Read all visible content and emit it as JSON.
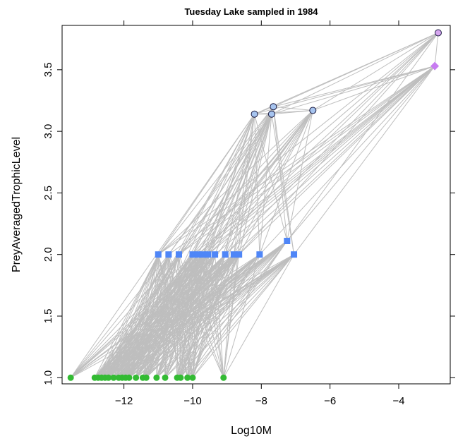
{
  "chart_data": {
    "type": "scatter",
    "title": "Tuesday Lake sampled in 1984",
    "xlabel": "Log10M",
    "ylabel": "PreyAveragedTrophicLevel",
    "xlim": [
      -13.8,
      -2.5
    ],
    "ylim": [
      0.95,
      3.86
    ],
    "xticks": [
      -12,
      -10,
      -8,
      -6,
      -4
    ],
    "yticks": [
      1.0,
      1.5,
      2.0,
      2.5,
      3.0,
      3.5
    ],
    "xtick_labels": [
      "−12",
      "−10",
      "−8",
      "−6",
      "−4"
    ],
    "ytick_labels": [
      "1.0",
      "1.5",
      "2.0",
      "2.5",
      "3.0",
      "3.5"
    ],
    "grid": false,
    "link_color": "#bebebe",
    "series": [
      {
        "marker": "circle",
        "color": "#33bb33",
        "points": [
          [
            -13.55,
            1
          ],
          [
            -12.85,
            1
          ],
          [
            -12.75,
            1
          ],
          [
            -12.65,
            1
          ],
          [
            -12.55,
            1
          ],
          [
            -12.45,
            1
          ],
          [
            -12.3,
            1
          ],
          [
            -12.15,
            1
          ],
          [
            -12.05,
            1
          ],
          [
            -11.95,
            1
          ],
          [
            -11.85,
            1
          ],
          [
            -11.65,
            1
          ],
          [
            -11.45,
            1
          ],
          [
            -11.35,
            1
          ],
          [
            -11.05,
            1
          ],
          [
            -10.8,
            1
          ],
          [
            -10.45,
            1
          ],
          [
            -10.35,
            1
          ],
          [
            -10.15,
            1
          ],
          [
            -10.0,
            1
          ],
          [
            -9.1,
            1
          ]
        ]
      },
      {
        "marker": "square",
        "color": "#4f86f7",
        "points": [
          [
            -11.0,
            2
          ],
          [
            -10.7,
            2
          ],
          [
            -10.4,
            2
          ],
          [
            -10.0,
            2
          ],
          [
            -9.85,
            2
          ],
          [
            -9.7,
            2
          ],
          [
            -9.55,
            2
          ],
          [
            -9.35,
            2
          ],
          [
            -9.05,
            2
          ],
          [
            -8.8,
            2
          ],
          [
            -8.65,
            2
          ],
          [
            -8.05,
            2
          ],
          [
            -7.25,
            2.11
          ],
          [
            -7.05,
            2
          ]
        ]
      },
      {
        "marker": "circle-outline",
        "color": "#a6c4ef",
        "points": [
          [
            -8.2,
            3.14
          ],
          [
            -7.7,
            3.14
          ],
          [
            -7.65,
            3.2
          ],
          [
            -6.5,
            3.17
          ]
        ]
      },
      {
        "marker": "diamond",
        "color": "#c77cf1",
        "points": [
          [
            -2.95,
            3.53
          ]
        ]
      },
      {
        "marker": "circle-outline",
        "color": "#d6a6ef",
        "points": [
          [
            -2.85,
            3.8
          ]
        ]
      }
    ]
  }
}
